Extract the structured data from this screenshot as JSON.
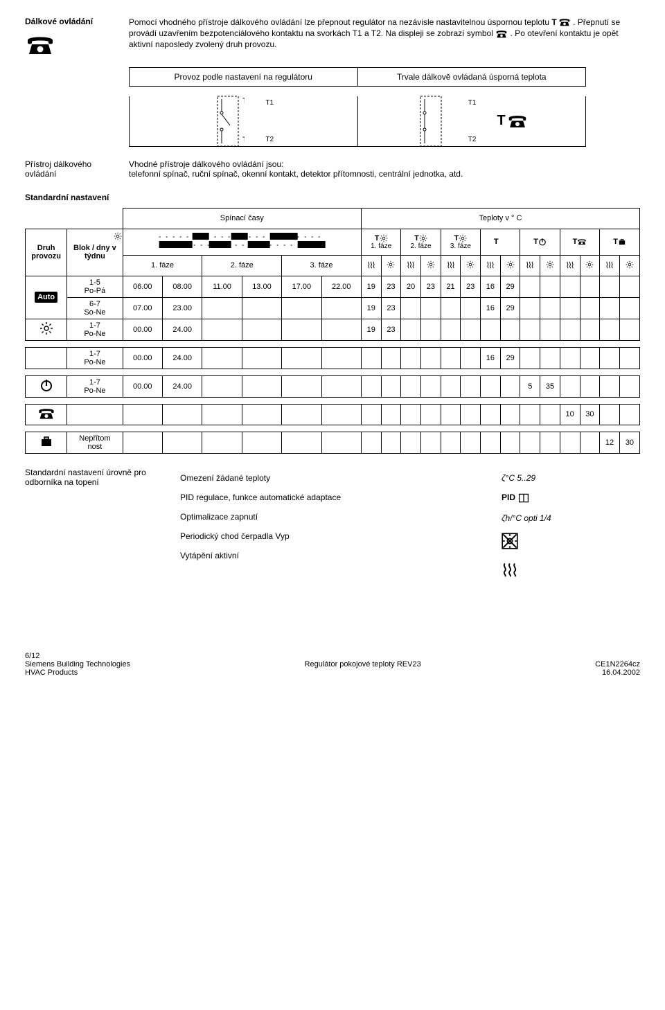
{
  "header": {
    "title_left": "Dálkové ovládání",
    "para1_a": "Pomocí vhodného přístroje dálkového ovládání lze přepnout regulátor na nezávisle nastavitelnou úspornou teplotu ",
    "para1_b": ". Přepnutí se provádí uzavřením bezpotenciálového kontaktu na svorkách T1 a T2. Na displeji se zobrazí symbol ",
    "para1_c": ". Po otevření kontaktu je opět aktivní naposledy zvolený druh provozu."
  },
  "twoBox": {
    "left_label": "Provoz podle nastavení na regulátoru",
    "right_label": "Trvale dálkově ovládaná úsporná teplota",
    "t1": "T1",
    "t2": "T2"
  },
  "deviceRow": {
    "left": "Přístroj dálkového ovládání",
    "text": "Vhodné přístroje dálkového ovládání jsou:\ntelefonní spínač, ruční spínač, okenní kontakt, detektor přítomnosti, centrální jednotka, atd."
  },
  "stdHeading": "Standardní nastavení",
  "sched": {
    "col_spinaci": "Spínací časy",
    "col_teploty": "Teploty v ° C",
    "druh": "Druh provozu",
    "blok": "Blok / dny v týdnu",
    "faze1": "1. fáze",
    "faze2": "2. fáze",
    "faze3": "3. fáze",
    "rows": [
      {
        "mode": "auto",
        "blocks": [
          "1-5",
          "Po-Pá",
          "6-7",
          "So-Ne"
        ],
        "times": [
          [
            "06.00",
            "08.00",
            "11.00",
            "13.00",
            "17.00",
            "22.00"
          ],
          [
            "07.00",
            "23.00",
            "",
            "",
            "",
            ""
          ]
        ],
        "temps": [
          [
            "19",
            "23",
            "20",
            "23",
            "21",
            "23",
            "16",
            "29",
            "",
            "",
            "",
            "",
            "",
            ""
          ],
          [
            "19",
            "23",
            "",
            "",
            "",
            "",
            "16",
            "29",
            "",
            "",
            "",
            "",
            "",
            ""
          ]
        ]
      },
      {
        "mode": "sun",
        "blocks": [
          "1-7",
          "Po-Ne"
        ],
        "times": [
          [
            "00.00",
            "24.00",
            "",
            "",
            "",
            ""
          ]
        ],
        "temps": [
          [
            "19",
            "23",
            "",
            "",
            "",
            "",
            "",
            "",
            "",
            "",
            "",
            "",
            "",
            ""
          ]
        ]
      },
      {
        "mode": "moon",
        "blocks": [
          "1-7",
          "Po-Ne"
        ],
        "times": [
          [
            "00.00",
            "24.00",
            "",
            "",
            "",
            ""
          ]
        ],
        "temps": [
          [
            "",
            "",
            "",
            "",
            "",
            "",
            "16",
            "29",
            "",
            "",
            "",
            "",
            "",
            ""
          ]
        ]
      },
      {
        "mode": "power",
        "blocks": [
          "1-7",
          "Po-Ne"
        ],
        "times": [
          [
            "00.00",
            "24.00",
            "",
            "",
            "",
            ""
          ]
        ],
        "temps": [
          [
            "",
            "",
            "",
            "",
            "",
            "",
            "",
            "",
            "5",
            "35",
            "",
            "",
            "",
            ""
          ]
        ]
      },
      {
        "mode": "phone",
        "blocks": [
          "",
          ""
        ],
        "times": [
          [
            "",
            "",
            "",
            "",
            "",
            ""
          ]
        ],
        "temps": [
          [
            "",
            "",
            "",
            "",
            "",
            "",
            "",
            "",
            "",
            "",
            "10",
            "30",
            "",
            ""
          ]
        ]
      },
      {
        "mode": "bag",
        "blocks": [
          "Nepřítom",
          "nost"
        ],
        "times": [
          [
            "",
            "",
            "",
            "",
            "",
            ""
          ]
        ],
        "temps": [
          [
            "",
            "",
            "",
            "",
            "",
            "",
            "",
            "",
            "",
            "",
            "",
            "",
            "12",
            "30"
          ]
        ]
      }
    ]
  },
  "bottom": {
    "left": "Standardní nastavení úrovně pro odborníka na topení",
    "lines": [
      "Omezení žádané teploty",
      "PID regulace, funkce automatické adaptace",
      "Optimalizace zapnutí",
      "Periodický chod čerpadla Vyp",
      "Vytápění aktivní"
    ],
    "right": [
      "ζ°C  5..29",
      "PID 📖",
      "ζh/°C opti 1/4",
      "x-sun",
      "waves"
    ]
  },
  "footer": {
    "page": "6/12",
    "l1": "Siemens Building Technologies",
    "l2": "HVAC Products",
    "c": "Regulátor pokojové teploty REV23",
    "r1": "CE1N2264cz",
    "r2": "16.04.2002"
  }
}
